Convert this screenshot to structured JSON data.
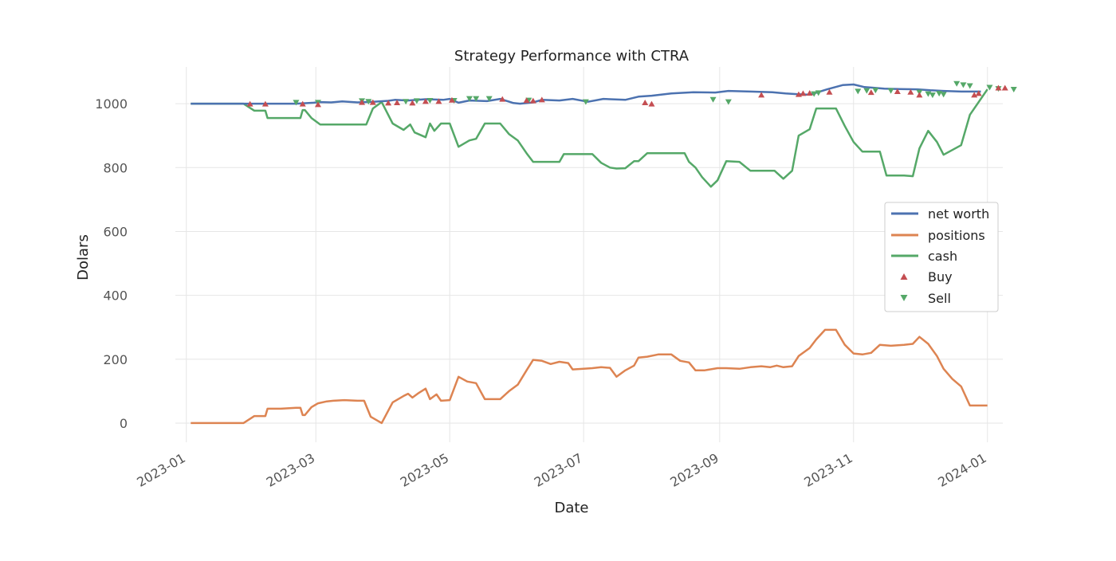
{
  "chart_data": {
    "type": "line",
    "title": "Strategy Performance with CTRA",
    "xlabel": "Date",
    "ylabel": "Dolars",
    "xlim": [
      "2022-12-27",
      "2024-01-08"
    ],
    "ylim": [
      -60,
      1115
    ],
    "grid": true,
    "legend_position": "center-right",
    "x_ticks": [
      "2023-01",
      "2023-03",
      "2023-05",
      "2023-07",
      "2023-09",
      "2023-11",
      "2024-01"
    ],
    "y_ticks": [
      0,
      200,
      400,
      600,
      800,
      1000
    ],
    "series": [
      {
        "name": "net worth",
        "color": "#4c72b0",
        "points": [
          [
            "2023-01-03",
            1000
          ],
          [
            "2023-02-01",
            1000
          ],
          [
            "2023-02-10",
            1000
          ],
          [
            "2023-02-20",
            1000
          ],
          [
            "2023-02-28",
            1003
          ],
          [
            "2023-03-03",
            1005
          ],
          [
            "2023-03-08",
            1004
          ],
          [
            "2023-03-13",
            1007
          ],
          [
            "2023-03-20",
            1004
          ],
          [
            "2023-03-27",
            1006
          ],
          [
            "2023-04-03",
            1009
          ],
          [
            "2023-04-06",
            1012
          ],
          [
            "2023-04-12",
            1010
          ],
          [
            "2023-04-20",
            1014
          ],
          [
            "2023-04-28",
            1012
          ],
          [
            "2023-05-01",
            1015
          ],
          [
            "2023-05-05",
            1003
          ],
          [
            "2023-05-10",
            1010
          ],
          [
            "2023-05-18",
            1008
          ],
          [
            "2023-05-24",
            1015
          ],
          [
            "2023-05-30",
            1002
          ],
          [
            "2023-06-02",
            1000
          ],
          [
            "2023-06-08",
            1004
          ],
          [
            "2023-06-12",
            1012
          ],
          [
            "2023-06-20",
            1010
          ],
          [
            "2023-06-26",
            1015
          ],
          [
            "2023-07-03",
            1006
          ],
          [
            "2023-07-10",
            1015
          ],
          [
            "2023-07-20",
            1012
          ],
          [
            "2023-07-26",
            1022
          ],
          [
            "2023-08-01",
            1025
          ],
          [
            "2023-08-10",
            1032
          ],
          [
            "2023-08-20",
            1036
          ],
          [
            "2023-08-30",
            1035
          ],
          [
            "2023-09-05",
            1040
          ],
          [
            "2023-09-15",
            1038
          ],
          [
            "2023-09-25",
            1036
          ],
          [
            "2023-10-01",
            1032
          ],
          [
            "2023-10-06",
            1030
          ],
          [
            "2023-10-12",
            1028
          ],
          [
            "2023-10-20",
            1045
          ],
          [
            "2023-10-27",
            1058
          ],
          [
            "2023-11-01",
            1060
          ],
          [
            "2023-11-06",
            1052
          ],
          [
            "2023-11-10",
            1050
          ],
          [
            "2023-11-15",
            1047
          ],
          [
            "2023-11-22",
            1046
          ],
          [
            "2023-11-30",
            1045
          ],
          [
            "2023-12-06",
            1042
          ],
          [
            "2023-12-12",
            1040
          ],
          [
            "2023-12-20",
            1038
          ],
          [
            "2023-12-29",
            1038
          ]
        ]
      },
      {
        "name": "positions",
        "color": "#dd8452",
        "points": [
          [
            "2023-01-03",
            0
          ],
          [
            "2023-01-27",
            0
          ],
          [
            "2023-02-01",
            22
          ],
          [
            "2023-02-06",
            22
          ],
          [
            "2023-02-07",
            45
          ],
          [
            "2023-02-13",
            45
          ],
          [
            "2023-02-20",
            48
          ],
          [
            "2023-02-22",
            48
          ],
          [
            "2023-02-23",
            25
          ],
          [
            "2023-02-24",
            25
          ],
          [
            "2023-02-27",
            50
          ],
          [
            "2023-03-02",
            62
          ],
          [
            "2023-03-06",
            68
          ],
          [
            "2023-03-09",
            70
          ],
          [
            "2023-03-14",
            72
          ],
          [
            "2023-03-20",
            70
          ],
          [
            "2023-03-23",
            70
          ],
          [
            "2023-03-26",
            20
          ],
          [
            "2023-03-31",
            0
          ],
          [
            "2023-04-05",
            65
          ],
          [
            "2023-04-10",
            85
          ],
          [
            "2023-04-12",
            92
          ],
          [
            "2023-04-14",
            80
          ],
          [
            "2023-04-17",
            95
          ],
          [
            "2023-04-20",
            108
          ],
          [
            "2023-04-22",
            75
          ],
          [
            "2023-04-25",
            90
          ],
          [
            "2023-04-27",
            70
          ],
          [
            "2023-05-01",
            72
          ],
          [
            "2023-05-05",
            145
          ],
          [
            "2023-05-09",
            130
          ],
          [
            "2023-05-13",
            125
          ],
          [
            "2023-05-17",
            75
          ],
          [
            "2023-05-24",
            75
          ],
          [
            "2023-05-28",
            100
          ],
          [
            "2023-06-01",
            120
          ],
          [
            "2023-06-05",
            165
          ],
          [
            "2023-06-08",
            198
          ],
          [
            "2023-06-12",
            195
          ],
          [
            "2023-06-16",
            185
          ],
          [
            "2023-06-20",
            192
          ],
          [
            "2023-06-24",
            188
          ],
          [
            "2023-06-26",
            168
          ],
          [
            "2023-07-01",
            170
          ],
          [
            "2023-07-05",
            172
          ],
          [
            "2023-07-09",
            175
          ],
          [
            "2023-07-13",
            173
          ],
          [
            "2023-07-16",
            145
          ],
          [
            "2023-07-20",
            165
          ],
          [
            "2023-07-24",
            180
          ],
          [
            "2023-07-26",
            205
          ],
          [
            "2023-07-30",
            208
          ],
          [
            "2023-08-04",
            215
          ],
          [
            "2023-08-10",
            215
          ],
          [
            "2023-08-14",
            195
          ],
          [
            "2023-08-18",
            190
          ],
          [
            "2023-08-21",
            165
          ],
          [
            "2023-08-25",
            165
          ],
          [
            "2023-08-31",
            172
          ],
          [
            "2023-09-04",
            172
          ],
          [
            "2023-09-10",
            170
          ],
          [
            "2023-09-15",
            175
          ],
          [
            "2023-09-20",
            178
          ],
          [
            "2023-09-24",
            175
          ],
          [
            "2023-09-27",
            180
          ],
          [
            "2023-09-30",
            175
          ],
          [
            "2023-10-04",
            178
          ],
          [
            "2023-10-07",
            210
          ],
          [
            "2023-10-12",
            235
          ],
          [
            "2023-10-15",
            262
          ],
          [
            "2023-10-19",
            292
          ],
          [
            "2023-10-24",
            292
          ],
          [
            "2023-10-28",
            245
          ],
          [
            "2023-11-01",
            218
          ],
          [
            "2023-11-05",
            215
          ],
          [
            "2023-11-09",
            220
          ],
          [
            "2023-11-13",
            245
          ],
          [
            "2023-11-18",
            242
          ],
          [
            "2023-11-24",
            245
          ],
          [
            "2023-11-28",
            248
          ],
          [
            "2023-12-01",
            270
          ],
          [
            "2023-12-05",
            248
          ],
          [
            "2023-12-09",
            210
          ],
          [
            "2023-12-12",
            170
          ],
          [
            "2023-12-16",
            138
          ],
          [
            "2023-12-20",
            115
          ],
          [
            "2023-12-24",
            55
          ],
          [
            "2024-01-01",
            55
          ]
        ]
      },
      {
        "name": "cash",
        "color": "#55a868",
        "points": [
          [
            "2023-01-03",
            1000
          ],
          [
            "2023-01-27",
            1000
          ],
          [
            "2023-02-01",
            978
          ],
          [
            "2023-02-06",
            978
          ],
          [
            "2023-02-07",
            955
          ],
          [
            "2023-02-20",
            955
          ],
          [
            "2023-02-22",
            955
          ],
          [
            "2023-02-23",
            980
          ],
          [
            "2023-02-24",
            980
          ],
          [
            "2023-02-27",
            955
          ],
          [
            "2023-03-03",
            935
          ],
          [
            "2023-03-24",
            935
          ],
          [
            "2023-03-27",
            985
          ],
          [
            "2023-03-31",
            1005
          ],
          [
            "2023-04-05",
            938
          ],
          [
            "2023-04-10",
            918
          ],
          [
            "2023-04-13",
            935
          ],
          [
            "2023-04-15",
            910
          ],
          [
            "2023-04-20",
            895
          ],
          [
            "2023-04-22",
            938
          ],
          [
            "2023-04-24",
            915
          ],
          [
            "2023-04-27",
            938
          ],
          [
            "2023-05-01",
            938
          ],
          [
            "2023-05-05",
            865
          ],
          [
            "2023-05-10",
            885
          ],
          [
            "2023-05-13",
            890
          ],
          [
            "2023-05-17",
            938
          ],
          [
            "2023-05-24",
            938
          ],
          [
            "2023-05-28",
            905
          ],
          [
            "2023-06-01",
            885
          ],
          [
            "2023-06-05",
            845
          ],
          [
            "2023-06-08",
            818
          ],
          [
            "2023-06-20",
            818
          ],
          [
            "2023-06-22",
            842
          ],
          [
            "2023-07-05",
            842
          ],
          [
            "2023-07-09",
            815
          ],
          [
            "2023-07-13",
            800
          ],
          [
            "2023-07-16",
            797
          ],
          [
            "2023-07-20",
            798
          ],
          [
            "2023-07-24",
            820
          ],
          [
            "2023-07-26",
            820
          ],
          [
            "2023-07-30",
            845
          ],
          [
            "2023-08-16",
            845
          ],
          [
            "2023-08-18",
            818
          ],
          [
            "2023-08-21",
            800
          ],
          [
            "2023-08-24",
            770
          ],
          [
            "2023-08-28",
            740
          ],
          [
            "2023-08-31",
            760
          ],
          [
            "2023-09-04",
            820
          ],
          [
            "2023-09-10",
            818
          ],
          [
            "2023-09-15",
            790
          ],
          [
            "2023-09-26",
            790
          ],
          [
            "2023-09-30",
            765
          ],
          [
            "2023-10-04",
            790
          ],
          [
            "2023-10-07",
            900
          ],
          [
            "2023-10-12",
            920
          ],
          [
            "2023-10-15",
            985
          ],
          [
            "2023-10-24",
            985
          ],
          [
            "2023-10-28",
            930
          ],
          [
            "2023-11-01",
            880
          ],
          [
            "2023-11-05",
            850
          ],
          [
            "2023-11-09",
            850
          ],
          [
            "2023-11-13",
            850
          ],
          [
            "2023-11-16",
            775
          ],
          [
            "2023-11-24",
            775
          ],
          [
            "2023-11-28",
            773
          ],
          [
            "2023-12-01",
            860
          ],
          [
            "2023-12-05",
            915
          ],
          [
            "2023-12-09",
            880
          ],
          [
            "2023-12-12",
            840
          ],
          [
            "2023-12-16",
            855
          ],
          [
            "2023-12-20",
            870
          ],
          [
            "2023-12-24",
            965
          ],
          [
            "2024-01-01",
            1045
          ]
        ]
      }
    ],
    "buy_markers": {
      "name": "Buy",
      "color": "#c44e52",
      "points": [
        [
          "2023-01-30",
          1000
        ],
        [
          "2023-02-06",
          1000
        ],
        [
          "2023-02-23",
          1000
        ],
        [
          "2023-03-02",
          998
        ],
        [
          "2023-03-22",
          1005
        ],
        [
          "2023-03-27",
          1005
        ],
        [
          "2023-04-03",
          1003
        ],
        [
          "2023-04-07",
          1004
        ],
        [
          "2023-04-14",
          1003
        ],
        [
          "2023-04-20",
          1008
        ],
        [
          "2023-04-26",
          1008
        ],
        [
          "2023-05-02",
          1012
        ],
        [
          "2023-05-25",
          1015
        ],
        [
          "2023-06-05",
          1011
        ],
        [
          "2023-06-08",
          1010
        ],
        [
          "2023-06-12",
          1013
        ],
        [
          "2023-07-29",
          1004
        ],
        [
          "2023-08-01",
          1000
        ],
        [
          "2023-09-20",
          1028
        ],
        [
          "2023-10-07",
          1030
        ],
        [
          "2023-10-09",
          1033
        ],
        [
          "2023-10-12",
          1034
        ],
        [
          "2023-10-21",
          1037
        ],
        [
          "2023-11-09",
          1036
        ],
        [
          "2023-11-21",
          1039
        ],
        [
          "2023-11-27",
          1037
        ],
        [
          "2023-12-01",
          1028
        ],
        [
          "2023-12-26",
          1028
        ],
        [
          "2023-12-28",
          1033
        ],
        [
          "2024-01-06",
          1050
        ],
        [
          "2024-01-09",
          1050
        ]
      ]
    },
    "sell_markers": {
      "name": "Sell",
      "color": "#55a868",
      "points": [
        [
          "2023-02-20",
          1003
        ],
        [
          "2023-03-02",
          1003
        ],
        [
          "2023-03-22",
          1008
        ],
        [
          "2023-03-25",
          1006
        ],
        [
          "2023-04-11",
          1006
        ],
        [
          "2023-04-16",
          1008
        ],
        [
          "2023-04-22",
          1009
        ],
        [
          "2023-05-03",
          1009
        ],
        [
          "2023-05-10",
          1015
        ],
        [
          "2023-05-13",
          1015
        ],
        [
          "2023-05-19",
          1015
        ],
        [
          "2023-06-06",
          1010
        ],
        [
          "2023-07-02",
          1005
        ],
        [
          "2023-08-29",
          1012
        ],
        [
          "2023-09-05",
          1005
        ],
        [
          "2023-10-14",
          1030
        ],
        [
          "2023-10-16",
          1033
        ],
        [
          "2023-11-03",
          1038
        ],
        [
          "2023-11-07",
          1040
        ],
        [
          "2023-11-11",
          1041
        ],
        [
          "2023-11-18",
          1040
        ],
        [
          "2023-12-01",
          1035
        ],
        [
          "2023-12-05",
          1030
        ],
        [
          "2023-12-07",
          1026
        ],
        [
          "2023-12-10",
          1031
        ],
        [
          "2023-12-12",
          1028
        ],
        [
          "2023-12-18",
          1062
        ],
        [
          "2023-12-21",
          1058
        ],
        [
          "2023-12-24",
          1055
        ],
        [
          "2024-01-02",
          1050
        ],
        [
          "2024-01-06",
          1046
        ],
        [
          "2024-01-13",
          1044
        ]
      ]
    }
  }
}
